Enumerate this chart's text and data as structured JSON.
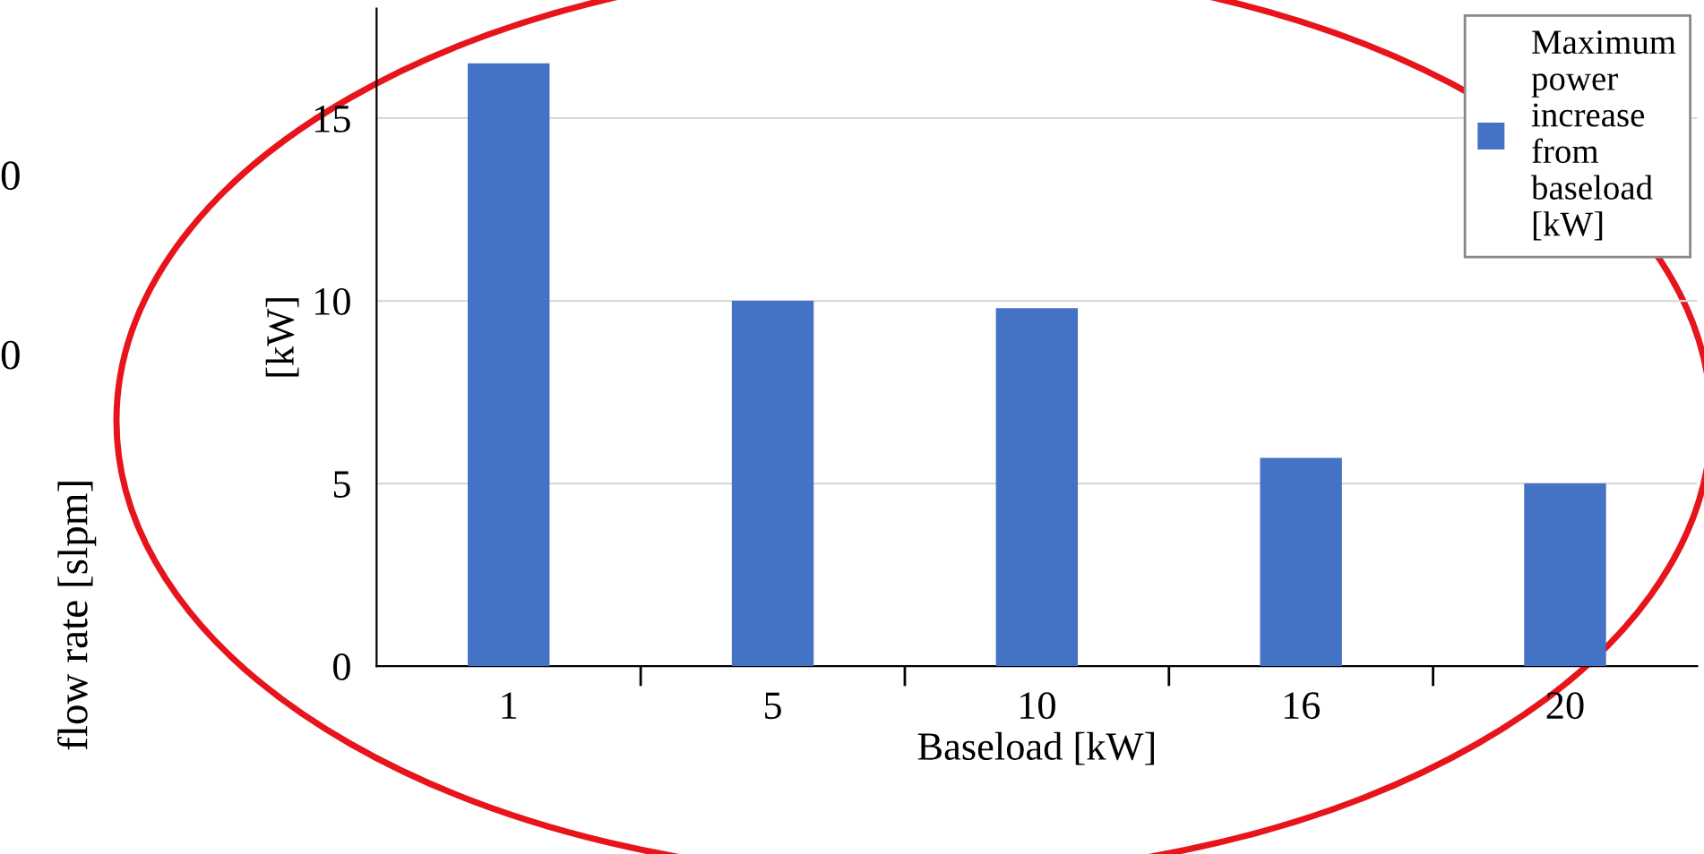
{
  "chart_data": {
    "type": "bar",
    "xlabel": "Baseload [kW]",
    "ylabel": "[kW]",
    "categories": [
      "1",
      "5",
      "10",
      "16",
      "20"
    ],
    "series": [
      {
        "name": "Maximum power increase from baseload [kW]",
        "color": "#4472c4",
        "values": [
          16.5,
          10.0,
          9.8,
          5.7,
          5.0
        ]
      }
    ],
    "ylim": [
      0,
      18
    ],
    "yticks": [
      0,
      5,
      10,
      15
    ],
    "grid": "y",
    "legend": "top right",
    "annotations": [
      "flow rate [slpm]",
      "0",
      "0"
    ]
  }
}
